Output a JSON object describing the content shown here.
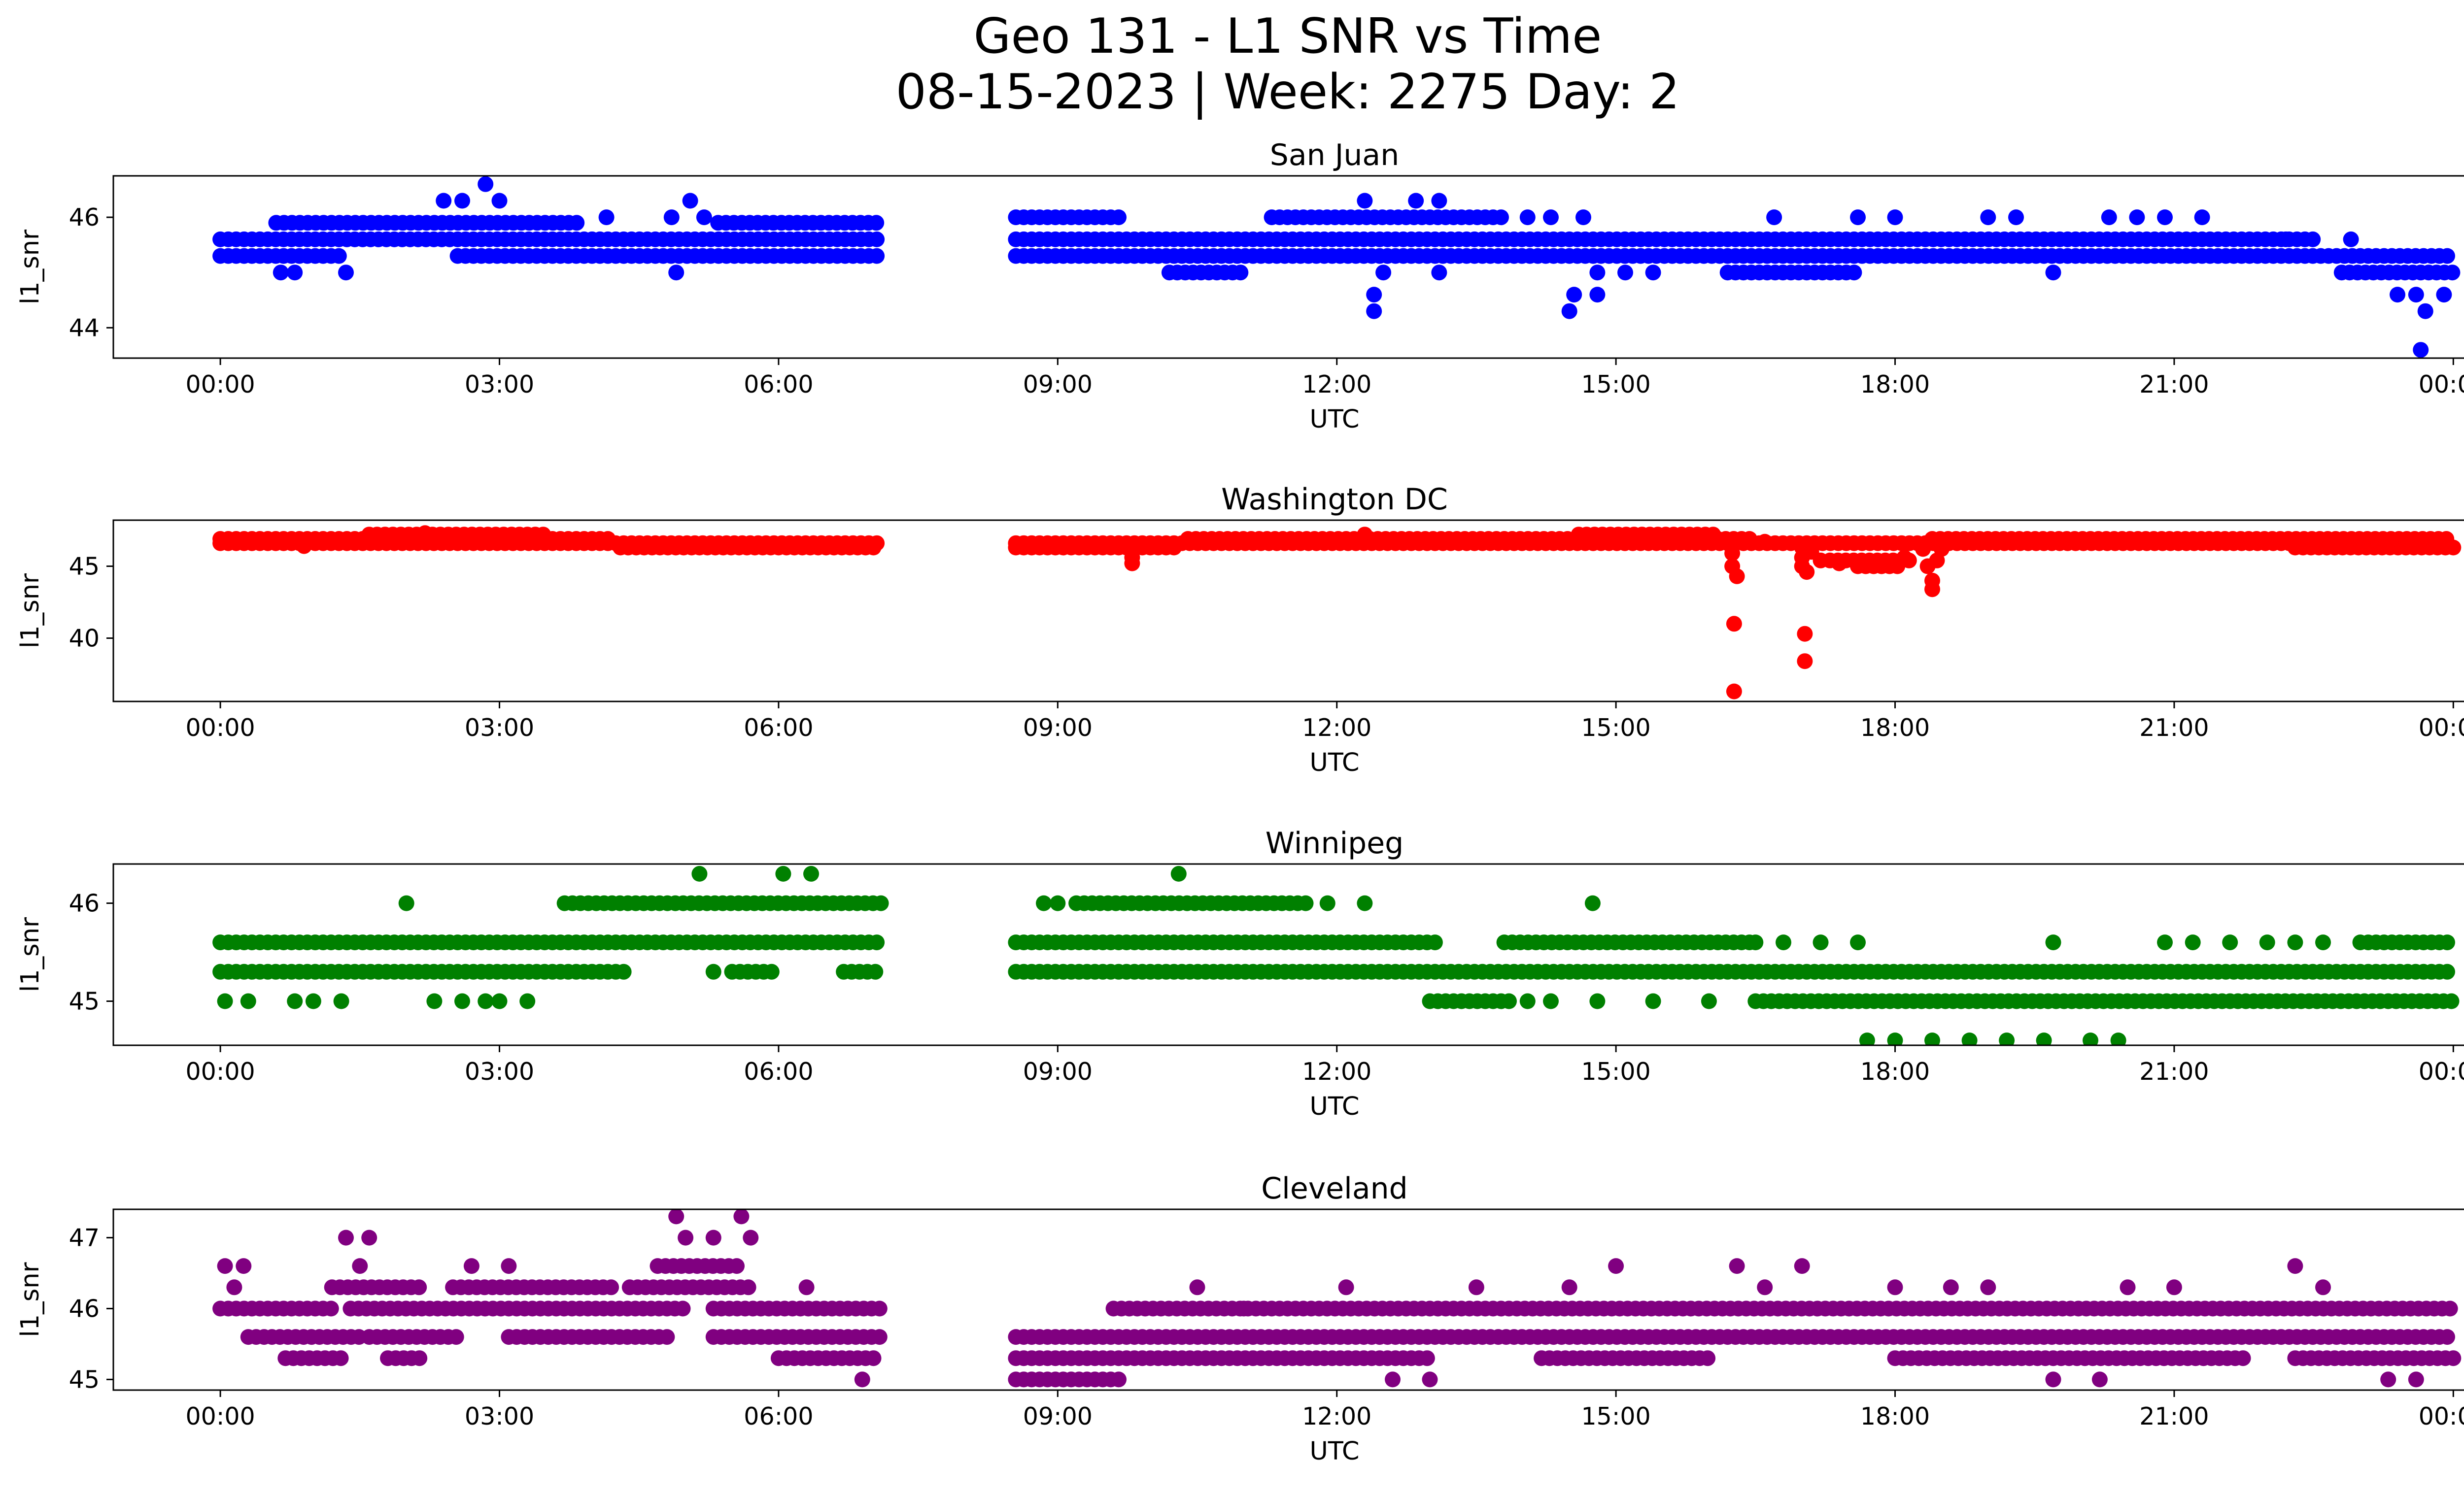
{
  "figure": {
    "title_line1": "Geo 131 - L1 SNR vs Time",
    "title_line2": "08-15-2023 | Week: 2275 Day: 2"
  },
  "chart_data": [
    {
      "type": "scatter",
      "title": "San Juan",
      "xlabel": "UTC",
      "ylabel": "l1_snr",
      "color": "#0000ff",
      "x_unit": "hours UTC",
      "xlim": [
        -1.15,
        25.1
      ],
      "ylim": [
        43.45,
        46.75
      ],
      "x_ticks": [
        0,
        3,
        6,
        9,
        12,
        15,
        18,
        21,
        24
      ],
      "x_tick_labels": [
        "00:00",
        "03:00",
        "06:00",
        "09:00",
        "12:00",
        "15:00",
        "18:00",
        "21:00",
        "00:00"
      ],
      "y_ticks": [
        44,
        46
      ],
      "y_tick_labels": [
        "44",
        "46"
      ],
      "segments": [
        [
          0.0,
          7.1
        ],
        [
          8.55,
          24.0
        ]
      ],
      "bands": [
        {
          "y": 45.3,
          "ranges": [
            [
              0.0,
              1.35
            ],
            [
              2.55,
              7.1
            ],
            [
              8.55,
              24.0
            ]
          ]
        },
        {
          "y": 45.6,
          "ranges": [
            [
              0.0,
              7.1
            ],
            [
              8.55,
              22.5
            ]
          ]
        },
        {
          "y": 45.9,
          "ranges": [
            [
              0.6,
              3.9
            ],
            [
              5.35,
              7.1
            ]
          ]
        },
        {
          "y": 45.0,
          "ranges": [
            [
              10.2,
              11.0
            ],
            [
              16.2,
              17.6
            ],
            [
              22.8,
              24.0
            ]
          ]
        },
        {
          "y": 46.0,
          "ranges": [
            [
              8.55,
              9.7
            ],
            [
              11.3,
              13.8
            ]
          ]
        }
      ],
      "points": [
        [
          0.65,
          45.0
        ],
        [
          0.8,
          45.0
        ],
        [
          1.35,
          45.0
        ],
        [
          2.4,
          46.3
        ],
        [
          2.6,
          46.3
        ],
        [
          2.85,
          46.6
        ],
        [
          3.0,
          46.3
        ],
        [
          4.15,
          46.0
        ],
        [
          4.9,
          45.0
        ],
        [
          5.05,
          46.3
        ],
        [
          5.2,
          46.0
        ],
        [
          4.85,
          46.0
        ],
        [
          12.3,
          46.3
        ],
        [
          12.4,
          44.6
        ],
        [
          12.4,
          44.3
        ],
        [
          12.5,
          45.0
        ],
        [
          12.85,
          46.3
        ],
        [
          13.1,
          46.3
        ],
        [
          13.1,
          45.0
        ],
        [
          14.05,
          46.0
        ],
        [
          14.3,
          46.0
        ],
        [
          14.5,
          44.3
        ],
        [
          14.55,
          44.6
        ],
        [
          14.65,
          46.0
        ],
        [
          14.8,
          44.6
        ],
        [
          14.8,
          45.0
        ],
        [
          15.1,
          45.0
        ],
        [
          15.4,
          45.0
        ],
        [
          16.7,
          46.0
        ],
        [
          17.6,
          46.0
        ],
        [
          18.0,
          46.0
        ],
        [
          19.0,
          46.0
        ],
        [
          19.3,
          46.0
        ],
        [
          19.7,
          45.0
        ],
        [
          20.3,
          46.0
        ],
        [
          20.6,
          46.0
        ],
        [
          20.9,
          46.0
        ],
        [
          21.3,
          46.0
        ],
        [
          22.2,
          45.6
        ],
        [
          22.9,
          45.6
        ],
        [
          23.4,
          44.6
        ],
        [
          23.6,
          44.6
        ],
        [
          23.65,
          43.6
        ],
        [
          23.7,
          44.3
        ],
        [
          23.9,
          44.6
        ]
      ]
    },
    {
      "type": "scatter",
      "title": "Washington DC",
      "xlabel": "UTC",
      "ylabel": "l1_snr",
      "color": "#ff0000",
      "x_unit": "hours UTC",
      "xlim": [
        -1.15,
        25.1
      ],
      "ylim": [
        35.6,
        48.2
      ],
      "x_ticks": [
        0,
        3,
        6,
        9,
        12,
        15,
        18,
        21,
        24
      ],
      "x_tick_labels": [
        "00:00",
        "03:00",
        "06:00",
        "09:00",
        "12:00",
        "15:00",
        "18:00",
        "21:00",
        "00:00"
      ],
      "y_ticks": [
        40,
        45
      ],
      "y_tick_labels": [
        "40",
        "45"
      ],
      "segments": [
        [
          0.0,
          7.1
        ],
        [
          8.55,
          24.0
        ]
      ],
      "bands": [
        {
          "y": 46.6,
          "ranges": [
            [
              0.0,
              7.1
            ],
            [
              8.55,
              24.0
            ]
          ]
        },
        {
          "y": 46.9,
          "ranges": [
            [
              0.0,
              4.2
            ],
            [
              10.4,
              16.5
            ],
            [
              18.4,
              24.0
            ]
          ]
        },
        {
          "y": 46.3,
          "ranges": [
            [
              4.3,
              7.1
            ],
            [
              8.55,
              10.3
            ],
            [
              22.3,
              24.0
            ]
          ]
        },
        {
          "y": 47.2,
          "ranges": [
            [
              1.6,
              3.5
            ],
            [
              14.6,
              16.1
            ]
          ]
        },
        {
          "y": 45.4,
          "ranges": [
            [
              17.3,
              18.2
            ]
          ]
        },
        {
          "y": 45.0,
          "ranges": [
            [
              17.6,
              18.1
            ]
          ]
        }
      ],
      "points": [
        [
          0.9,
          46.4
        ],
        [
          2.2,
          47.3
        ],
        [
          9.8,
          45.6
        ],
        [
          9.8,
          45.2
        ],
        [
          12.3,
          47.2
        ],
        [
          16.25,
          45.9
        ],
        [
          16.25,
          45.0
        ],
        [
          16.3,
          44.3
        ],
        [
          16.27,
          41.0
        ],
        [
          16.27,
          36.3
        ],
        [
          16.6,
          46.7
        ],
        [
          17.0,
          46.3
        ],
        [
          17.0,
          45.6
        ],
        [
          17.0,
          45.0
        ],
        [
          17.05,
          44.6
        ],
        [
          17.03,
          40.3
        ],
        [
          17.03,
          38.4
        ],
        [
          17.1,
          46.0
        ],
        [
          17.2,
          45.4
        ],
        [
          17.4,
          45.2
        ],
        [
          18.1,
          45.6
        ],
        [
          18.3,
          46.2
        ],
        [
          18.35,
          45.0
        ],
        [
          18.4,
          44.0
        ],
        [
          18.4,
          43.4
        ],
        [
          18.45,
          45.4
        ],
        [
          18.5,
          46.2
        ]
      ]
    },
    {
      "type": "scatter",
      "title": "Winnipeg",
      "xlabel": "UTC",
      "ylabel": "l1_snr",
      "color": "#008000",
      "x_unit": "hours UTC",
      "xlim": [
        -1.15,
        25.1
      ],
      "ylim": [
        44.55,
        46.4
      ],
      "x_ticks": [
        0,
        3,
        6,
        9,
        12,
        15,
        18,
        21,
        24
      ],
      "x_tick_labels": [
        "00:00",
        "03:00",
        "06:00",
        "09:00",
        "12:00",
        "15:00",
        "18:00",
        "21:00",
        "00:00"
      ],
      "y_ticks": [
        45,
        46
      ],
      "y_tick_labels": [
        "45",
        "46"
      ],
      "segments": [
        [
          0.0,
          7.1
        ],
        [
          8.55,
          24.0
        ]
      ],
      "bands": [
        {
          "y": 45.6,
          "ranges": [
            [
              0.0,
              7.1
            ],
            [
              8.55,
              13.1
            ],
            [
              13.8,
              16.5
            ]
          ]
        },
        {
          "y": 45.3,
          "ranges": [
            [
              0.0,
              4.4
            ],
            [
              5.5,
              6.0
            ],
            [
              6.7,
              7.1
            ],
            [
              8.55,
              24.0
            ]
          ]
        },
        {
          "y": 46.0,
          "ranges": [
            [
              3.7,
              7.1
            ],
            [
              9.2,
              11.7
            ]
          ]
        },
        {
          "y": 45.0,
          "ranges": [
            [
              13.0,
              13.9
            ],
            [
              16.5,
              24.0
            ]
          ]
        },
        {
          "y": 45.6,
          "ranges": [
            [
              23.0,
              24.0
            ]
          ]
        }
      ],
      "points": [
        [
          0.05,
          45.0
        ],
        [
          0.3,
          45.0
        ],
        [
          0.8,
          45.0
        ],
        [
          1.0,
          45.0
        ],
        [
          1.3,
          45.0
        ],
        [
          2.0,
          46.0
        ],
        [
          2.3,
          45.0
        ],
        [
          2.6,
          45.0
        ],
        [
          2.85,
          45.0
        ],
        [
          3.0,
          45.0
        ],
        [
          3.3,
          45.0
        ],
        [
          5.15,
          46.3
        ],
        [
          5.3,
          45.3
        ],
        [
          6.05,
          46.3
        ],
        [
          6.35,
          46.3
        ],
        [
          8.85,
          46.0
        ],
        [
          9.0,
          46.0
        ],
        [
          10.3,
          46.3
        ],
        [
          11.9,
          46.0
        ],
        [
          12.3,
          46.0
        ],
        [
          14.05,
          45.0
        ],
        [
          14.3,
          45.0
        ],
        [
          14.75,
          46.0
        ],
        [
          14.8,
          45.0
        ],
        [
          15.4,
          45.0
        ],
        [
          16.0,
          45.0
        ],
        [
          16.5,
          45.6
        ],
        [
          16.8,
          45.6
        ],
        [
          17.2,
          45.6
        ],
        [
          17.6,
          45.6
        ],
        [
          17.7,
          44.6
        ],
        [
          18.0,
          44.6
        ],
        [
          18.4,
          44.6
        ],
        [
          18.8,
          44.6
        ],
        [
          19.2,
          44.6
        ],
        [
          19.6,
          44.6
        ],
        [
          20.1,
          44.6
        ],
        [
          20.4,
          44.6
        ],
        [
          19.7,
          45.6
        ],
        [
          20.9,
          45.6
        ],
        [
          21.2,
          45.6
        ],
        [
          21.6,
          45.6
        ],
        [
          22.0,
          45.6
        ],
        [
          22.3,
          45.6
        ],
        [
          22.6,
          45.6
        ]
      ]
    },
    {
      "type": "scatter",
      "title": "Cleveland",
      "xlabel": "UTC",
      "ylabel": "l1_snr",
      "color": "#800080",
      "x_unit": "hours UTC",
      "xlim": [
        -1.15,
        25.1
      ],
      "ylim": [
        44.85,
        47.4
      ],
      "x_ticks": [
        0,
        3,
        6,
        9,
        12,
        15,
        18,
        21,
        24
      ],
      "x_tick_labels": [
        "00:00",
        "03:00",
        "06:00",
        "09:00",
        "12:00",
        "15:00",
        "18:00",
        "21:00",
        "00:00"
      ],
      "y_ticks": [
        45,
        46,
        47
      ],
      "y_tick_labels": [
        "45",
        "46",
        "47"
      ],
      "segments": [
        [
          0.0,
          7.1
        ],
        [
          8.55,
          24.0
        ]
      ],
      "bands": [
        {
          "y": 46.0,
          "ranges": [
            [
              0.0,
              1.2
            ],
            [
              1.4,
              5.0
            ],
            [
              5.3,
              7.1
            ],
            [
              9.6,
              24.0
            ]
          ]
        },
        {
          "y": 45.6,
          "ranges": [
            [
              0.3,
              1.5
            ],
            [
              1.6,
              2.6
            ],
            [
              3.1,
              4.8
            ],
            [
              5.3,
              7.1
            ],
            [
              8.55,
              24.0
            ]
          ]
        },
        {
          "y": 46.3,
          "ranges": [
            [
              1.2,
              2.2
            ],
            [
              2.5,
              4.2
            ],
            [
              4.4,
              5.7
            ]
          ]
        },
        {
          "y": 45.3,
          "ranges": [
            [
              0.7,
              1.3
            ],
            [
              1.8,
              2.2
            ],
            [
              6.0,
              7.1
            ],
            [
              8.55,
              13.0
            ],
            [
              14.2,
              16.0
            ],
            [
              18.0,
              21.8
            ],
            [
              22.3,
              24.0
            ]
          ]
        },
        {
          "y": 45.0,
          "ranges": [
            [
              8.55,
              9.7
            ]
          ]
        },
        {
          "y": 46.6,
          "ranges": [
            [
              4.7,
              5.6
            ]
          ]
        }
      ],
      "points": [
        [
          0.05,
          46.6
        ],
        [
          0.15,
          46.3
        ],
        [
          0.25,
          46.6
        ],
        [
          1.35,
          47.0
        ],
        [
          1.5,
          46.6
        ],
        [
          1.6,
          47.0
        ],
        [
          2.7,
          46.6
        ],
        [
          3.1,
          46.6
        ],
        [
          4.9,
          47.3
        ],
        [
          5.0,
          47.0
        ],
        [
          5.3,
          47.0
        ],
        [
          5.6,
          47.3
        ],
        [
          5.7,
          47.0
        ],
        [
          6.3,
          46.3
        ],
        [
          6.9,
          45.0
        ],
        [
          10.5,
          46.3
        ],
        [
          11.0,
          46.0
        ],
        [
          12.1,
          46.3
        ],
        [
          12.6,
          45.0
        ],
        [
          13.0,
          45.0
        ],
        [
          13.5,
          46.3
        ],
        [
          14.5,
          46.3
        ],
        [
          15.0,
          46.6
        ],
        [
          16.3,
          46.6
        ],
        [
          16.6,
          46.3
        ],
        [
          17.0,
          46.6
        ],
        [
          18.0,
          46.3
        ],
        [
          18.6,
          46.3
        ],
        [
          19.0,
          46.3
        ],
        [
          19.7,
          45.0
        ],
        [
          20.2,
          45.0
        ],
        [
          20.5,
          46.3
        ],
        [
          21.0,
          46.3
        ],
        [
          22.3,
          46.6
        ],
        [
          22.6,
          46.3
        ],
        [
          23.3,
          45.0
        ],
        [
          23.6,
          45.0
        ]
      ]
    }
  ]
}
